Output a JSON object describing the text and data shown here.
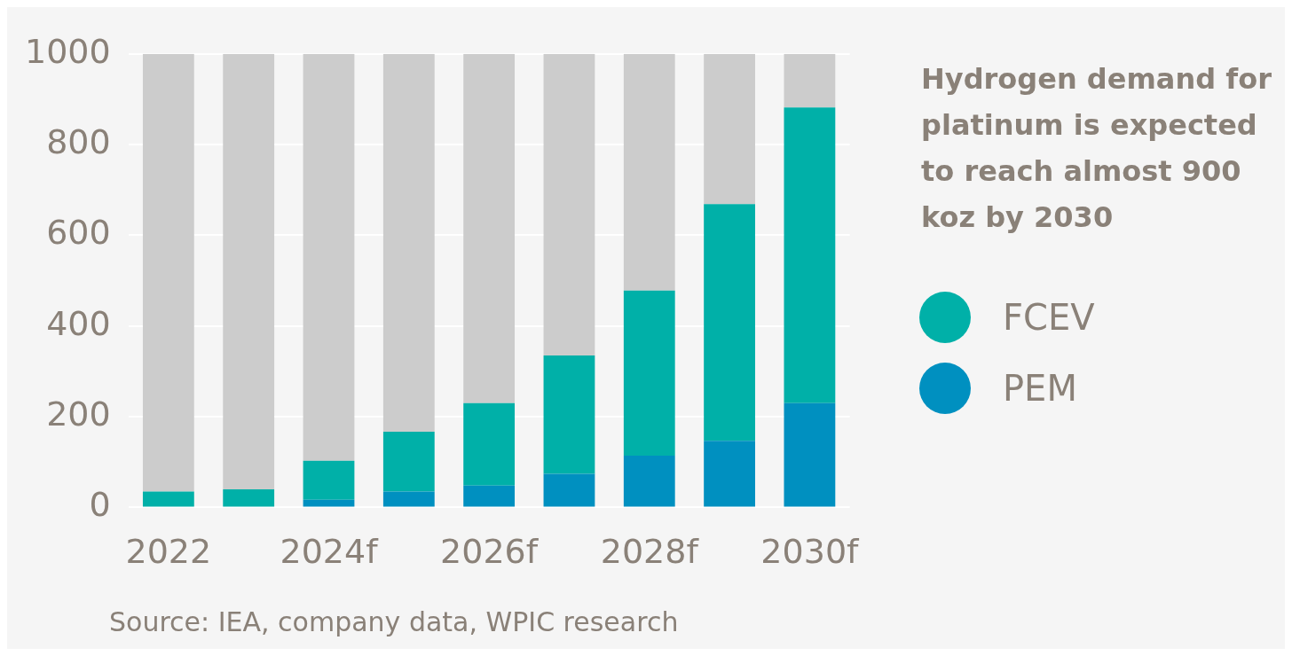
{
  "chart_data": {
    "type": "bar",
    "stacked": true,
    "title": "Hydrogen demand for platinum is expected to reach almost 900 koz by 2030",
    "categories": [
      "2022",
      null,
      "2024f",
      null,
      "2026f",
      null,
      "2028f",
      null,
      "2030f"
    ],
    "series": [
      {
        "name": "PEM",
        "color": "#0090c0",
        "values": [
          0,
          0,
          17,
          35,
          48,
          74,
          114,
          147,
          230
        ]
      },
      {
        "name": "FCEV",
        "color": "#00b0a8",
        "values": [
          35,
          40,
          86,
          132,
          182,
          261,
          364,
          522,
          652
        ]
      },
      {
        "color": "#cccccc",
        "values": [
          965,
          960,
          897,
          833,
          770,
          665,
          522,
          331,
          118
        ]
      }
    ],
    "ylim": [
      0,
      1000
    ],
    "yticks": [
      0,
      200,
      400,
      600,
      800,
      1000
    ],
    "grid": "y",
    "legend": "right",
    "annotations": [
      "Source: IEA, company data, WPIC research"
    ]
  }
}
